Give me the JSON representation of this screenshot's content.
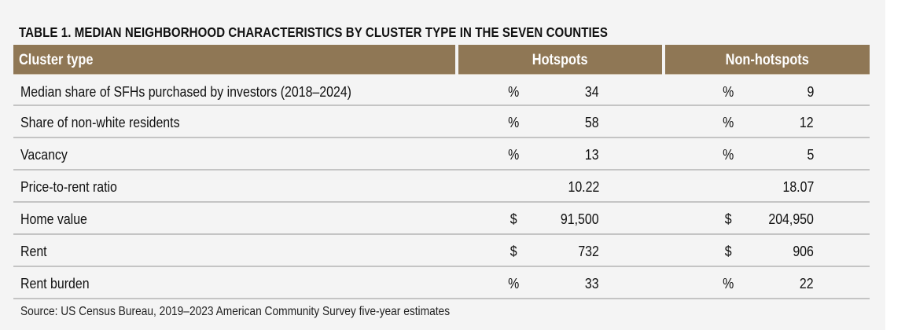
{
  "table": {
    "title": "TABLE 1. MEDIAN NEIGHBORHOOD CHARACTERISTICS BY CLUSTER TYPE IN THE SEVEN COUNTIES",
    "header_color": "#8f7755",
    "columns": {
      "label": "Cluster type",
      "hotspots": "Hotspots",
      "non_hotspots": "Non-hotspots"
    },
    "rows": [
      {
        "label": "Median share of SFHs purchased by investors (2018–2024)",
        "hot_unit": "%",
        "hot_value": "34",
        "non_unit": "%",
        "non_value": "9"
      },
      {
        "label": "Share of non-white residents",
        "hot_unit": "%",
        "hot_value": "58",
        "non_unit": "%",
        "non_value": "12"
      },
      {
        "label": "Vacancy",
        "hot_unit": "%",
        "hot_value": "13",
        "non_unit": "%",
        "non_value": "5"
      },
      {
        "label": "Price-to-rent ratio",
        "hot_unit": "",
        "hot_value": "10.22",
        "non_unit": "",
        "non_value": "18.07"
      },
      {
        "label": "Home value",
        "hot_unit": "$",
        "hot_value": "91,500",
        "non_unit": "$",
        "non_value": "204,950"
      },
      {
        "label": "Rent",
        "hot_unit": "$",
        "hot_value": "732",
        "non_unit": "$",
        "non_value": "906"
      },
      {
        "label": "Rent burden",
        "hot_unit": "%",
        "hot_value": "33",
        "non_unit": "%",
        "non_value": "22"
      }
    ],
    "source": "Source: US Census Bureau, 2019–2023 American Community Survey five-year estimates"
  }
}
